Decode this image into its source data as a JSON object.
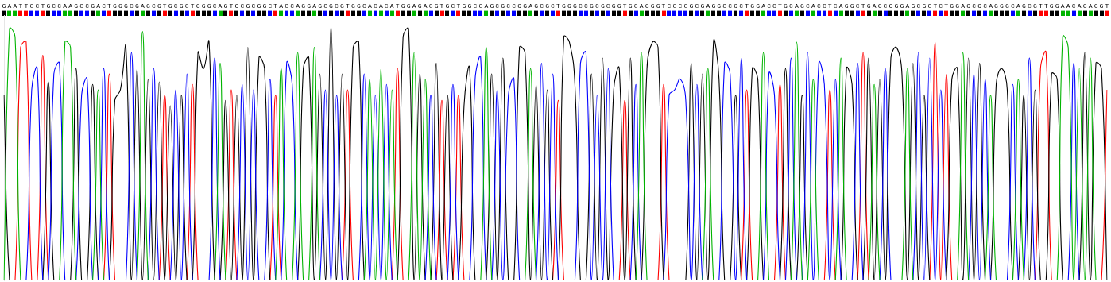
{
  "chart_data": {
    "type": "line",
    "categories": [
      "G",
      "A",
      "A",
      "T",
      "T",
      "C",
      "C",
      "T",
      "G",
      "C",
      "C",
      "A",
      "A",
      "G",
      "C",
      "C",
      "G",
      "A",
      "C",
      "T",
      "G",
      "G",
      "G",
      "C",
      "G",
      "A",
      "G",
      "C",
      "G",
      "T",
      "G",
      "C",
      "G",
      "C",
      "T",
      "G",
      "G",
      "G",
      "C",
      "A",
      "G",
      "T",
      "G",
      "C",
      "G",
      "C",
      "G",
      "G",
      "C",
      "T",
      "A",
      "C",
      "C",
      "A",
      "G",
      "G",
      "A",
      "G",
      "C",
      "G",
      "C",
      "G",
      "T",
      "G",
      "G",
      "C",
      "A",
      "C",
      "A",
      "C",
      "A",
      "T",
      "G",
      "G",
      "A",
      "G",
      "A",
      "C",
      "G",
      "T",
      "G",
      "C",
      "T",
      "G",
      "G",
      "C",
      "C",
      "A",
      "G",
      "C",
      "G",
      "C",
      "C",
      "G",
      "G",
      "A",
      "G",
      "C",
      "G",
      "C",
      "T",
      "G",
      "G",
      "G",
      "C",
      "C",
      "G",
      "C",
      "G",
      "C",
      "G",
      "G",
      "T",
      "G",
      "C",
      "A",
      "G",
      "G",
      "G",
      "T",
      "C",
      "C",
      "C",
      "C",
      "G",
      "C",
      "G",
      "A",
      "G",
      "G",
      "C",
      "C",
      "G",
      "C",
      "T",
      "G",
      "G",
      "A",
      "C",
      "C",
      "T",
      "G",
      "C",
      "A",
      "G",
      "C",
      "A",
      "C",
      "C",
      "T",
      "C",
      "A",
      "G",
      "G",
      "C",
      "T",
      "G",
      "A",
      "G",
      "C",
      "G",
      "G",
      "G",
      "A",
      "G",
      "C",
      "G",
      "C",
      "T",
      "C",
      "T",
      "G",
      "G",
      "A",
      "G",
      "C",
      "G",
      "C",
      "A",
      "G",
      "G",
      "G",
      "C",
      "A",
      "G",
      "C",
      "G",
      "T",
      "T",
      "G",
      "G",
      "A",
      "A",
      "C",
      "A",
      "G",
      "A",
      "G",
      "G",
      "T"
    ],
    "series": [
      {
        "color": "#00b400",
        "values": [
          0,
          95,
          92,
          0,
          0,
          0,
          0,
          0,
          0,
          0,
          0,
          90,
          88,
          0,
          0,
          0,
          0,
          72,
          0,
          0,
          0,
          0,
          0,
          0,
          0,
          94,
          0,
          0,
          0,
          0,
          0,
          0,
          0,
          0,
          0,
          0,
          0,
          0,
          0,
          82,
          0,
          0,
          0,
          0,
          0,
          0,
          0,
          0,
          0,
          0,
          80,
          0,
          0,
          86,
          0,
          0,
          88,
          0,
          0,
          0,
          0,
          0,
          0,
          0,
          0,
          0,
          76,
          0,
          80,
          0,
          72,
          0,
          0,
          0,
          86,
          0,
          76,
          0,
          0,
          0,
          0,
          0,
          0,
          0,
          0,
          0,
          0,
          88,
          0,
          0,
          0,
          0,
          0,
          0,
          0,
          80,
          0,
          0,
          0,
          0,
          0,
          0,
          0,
          0,
          0,
          0,
          0,
          0,
          0,
          0,
          0,
          0,
          0,
          0,
          0,
          86,
          0,
          0,
          0,
          0,
          0,
          0,
          0,
          0,
          0,
          0,
          0,
          80,
          0,
          0,
          0,
          0,
          0,
          0,
          0,
          0,
          0,
          86,
          0,
          0,
          0,
          0,
          0,
          90,
          0,
          0,
          76,
          0,
          0,
          0,
          0,
          84,
          0,
          0,
          0,
          0,
          0,
          74,
          0,
          0,
          0,
          0,
          0,
          80,
          0,
          0,
          0,
          0,
          0,
          0,
          0,
          0,
          0,
          86,
          0,
          0,
          0,
          0,
          70,
          0,
          0,
          0,
          0,
          76,
          0,
          0,
          0,
          0,
          0,
          0,
          0,
          92,
          88,
          0,
          80,
          0,
          84,
          0,
          0,
          0
        ]
      },
      {
        "color": "#0000ff",
        "values": [
          0,
          0,
          0,
          0,
          0,
          72,
          80,
          0,
          0,
          78,
          82,
          0,
          0,
          0,
          70,
          76,
          0,
          0,
          80,
          0,
          0,
          0,
          0,
          86,
          0,
          0,
          0,
          80,
          0,
          0,
          0,
          72,
          0,
          78,
          0,
          0,
          0,
          0,
          84,
          0,
          0,
          0,
          0,
          74,
          0,
          72,
          0,
          0,
          76,
          0,
          0,
          82,
          74,
          0,
          0,
          0,
          0,
          0,
          72,
          0,
          70,
          0,
          0,
          0,
          0,
          78,
          0,
          70,
          0,
          74,
          0,
          0,
          0,
          0,
          0,
          0,
          0,
          70,
          0,
          0,
          0,
          74,
          0,
          0,
          0,
          76,
          84,
          0,
          0,
          72,
          0,
          70,
          76,
          0,
          0,
          0,
          0,
          82,
          0,
          78,
          0,
          0,
          0,
          0,
          82,
          86,
          0,
          70,
          0,
          80,
          0,
          0,
          0,
          0,
          74,
          0,
          0,
          0,
          0,
          0,
          70,
          72,
          76,
          68,
          0,
          74,
          0,
          0,
          0,
          0,
          82,
          78,
          0,
          84,
          0,
          0,
          0,
          0,
          78,
          70,
          0,
          0,
          84,
          0,
          0,
          86,
          0,
          82,
          74,
          0,
          76,
          0,
          0,
          0,
          82,
          0,
          0,
          0,
          0,
          80,
          0,
          0,
          0,
          0,
          0,
          86,
          0,
          84,
          0,
          72,
          0,
          0,
          0,
          0,
          0,
          78,
          0,
          76,
          0,
          0,
          0,
          0,
          74,
          0,
          0,
          84,
          0,
          0,
          0,
          0,
          0,
          0,
          0,
          82,
          0,
          0,
          0,
          0,
          0,
          0
        ]
      },
      {
        "color": "#000000",
        "values": [
          70,
          0,
          0,
          0,
          0,
          0,
          0,
          0,
          75,
          0,
          0,
          0,
          0,
          80,
          0,
          0,
          74,
          0,
          0,
          0,
          68,
          72,
          88,
          0,
          80,
          0,
          76,
          0,
          75,
          0,
          66,
          0,
          70,
          0,
          0,
          86,
          80,
          90,
          0,
          0,
          68,
          0,
          70,
          0,
          88,
          0,
          84,
          80,
          0,
          0,
          0,
          0,
          0,
          0,
          80,
          84,
          0,
          78,
          0,
          96,
          0,
          78,
          0,
          88,
          90,
          0,
          0,
          0,
          0,
          0,
          0,
          0,
          92,
          95,
          0,
          78,
          0,
          0,
          82,
          0,
          70,
          0,
          0,
          66,
          80,
          0,
          0,
          0,
          78,
          0,
          84,
          0,
          0,
          88,
          86,
          0,
          74,
          0,
          72,
          0,
          0,
          92,
          90,
          74,
          0,
          0,
          78,
          0,
          84,
          0,
          72,
          80,
          0,
          84,
          0,
          0,
          80,
          90,
          88,
          0,
          0,
          0,
          0,
          0,
          82,
          0,
          78,
          0,
          90,
          76,
          0,
          0,
          70,
          0,
          0,
          80,
          76,
          0,
          0,
          0,
          0,
          80,
          0,
          0,
          70,
          0,
          0,
          0,
          0,
          0,
          0,
          0,
          80,
          74,
          0,
          0,
          84,
          0,
          76,
          0,
          84,
          88,
          78,
          0,
          82,
          0,
          70,
          0,
          0,
          0,
          0,
          76,
          80,
          0,
          84,
          0,
          82,
          0,
          0,
          74,
          80,
          72,
          0,
          0,
          70,
          0,
          72,
          0,
          0,
          78,
          76,
          0,
          0,
          0,
          0,
          86,
          0,
          82,
          80,
          0
        ]
      },
      {
        "color": "#ff0000",
        "values": [
          0,
          0,
          0,
          88,
          90,
          0,
          0,
          85,
          0,
          0,
          0,
          0,
          0,
          0,
          0,
          0,
          0,
          0,
          0,
          78,
          0,
          0,
          0,
          0,
          0,
          0,
          0,
          0,
          0,
          70,
          0,
          0,
          0,
          0,
          74,
          0,
          0,
          0,
          0,
          0,
          0,
          72,
          0,
          0,
          0,
          0,
          0,
          0,
          0,
          70,
          0,
          0,
          0,
          0,
          0,
          0,
          0,
          0,
          0,
          0,
          0,
          0,
          72,
          0,
          0,
          0,
          0,
          0,
          0,
          0,
          0,
          80,
          0,
          0,
          0,
          0,
          0,
          0,
          0,
          68,
          0,
          0,
          70,
          0,
          0,
          0,
          0,
          0,
          0,
          0,
          0,
          0,
          0,
          0,
          0,
          0,
          0,
          0,
          0,
          0,
          68,
          0,
          0,
          0,
          0,
          0,
          0,
          0,
          0,
          0,
          0,
          0,
          68,
          0,
          0,
          0,
          0,
          0,
          0,
          74,
          0,
          0,
          0,
          0,
          0,
          0,
          0,
          0,
          0,
          0,
          0,
          0,
          0,
          0,
          72,
          0,
          0,
          0,
          0,
          0,
          74,
          0,
          0,
          0,
          0,
          0,
          0,
          0,
          0,
          72,
          0,
          0,
          0,
          0,
          0,
          86,
          0,
          0,
          0,
          0,
          0,
          0,
          0,
          0,
          0,
          0,
          0,
          0,
          90,
          0,
          78,
          0,
          0,
          0,
          0,
          0,
          0,
          0,
          0,
          0,
          0,
          0,
          0,
          0,
          0,
          0,
          0,
          80,
          86,
          0,
          0,
          0,
          0,
          0,
          0,
          0,
          0,
          0,
          0,
          72
        ]
      }
    ],
    "ylim": [
      0,
      100
    ],
    "grid": false,
    "tick_labels": "x"
  }
}
